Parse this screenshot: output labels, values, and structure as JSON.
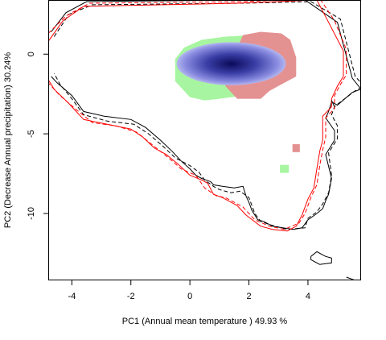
{
  "chart_data": {
    "type": "scatter",
    "title": "",
    "xlabel": "PC1 (Annual mean temperature ) 49.93 %",
    "ylabel": "PC2 (Decrease Annual precipitation) 30.24%",
    "xlim": [
      -4.8,
      5.8
    ],
    "ylim": [
      -14.2,
      3.4
    ],
    "x_ticks": [
      -4,
      -2,
      0,
      2,
      4
    ],
    "y_ticks": [
      0,
      -5,
      -10
    ],
    "grid": false,
    "legend": "none",
    "colors": {
      "black": "#000000",
      "red": "#ff0000",
      "green_fill": "#a7f5a0",
      "red_fill": "#e49191",
      "blue_dark": "#0a0a5a",
      "blue_light": "#b4b6ee"
    },
    "series": [
      {
        "style": "solid",
        "color": "black",
        "points": [
          [
            -4.7,
            1.4
          ],
          [
            -4.2,
            2.6
          ],
          [
            -3.5,
            3.3
          ],
          [
            1.7,
            3.4
          ],
          [
            3.9,
            3.4
          ],
          [
            5.0,
            2.0
          ],
          [
            5.5,
            -1.5
          ],
          [
            5.8,
            -2.2
          ],
          [
            5.5,
            -2.4
          ],
          [
            5.0,
            -3.2
          ],
          [
            4.8,
            -3.0
          ],
          [
            4.7,
            -3.6
          ],
          [
            4.6,
            -4.0
          ],
          [
            4.9,
            -4.8
          ],
          [
            4.9,
            -5.4
          ],
          [
            4.6,
            -6.3
          ],
          [
            4.8,
            -7.8
          ],
          [
            4.7,
            -8.8
          ],
          [
            4.6,
            -9.2
          ],
          [
            4.5,
            -9.7
          ],
          [
            4.3,
            -10.0
          ],
          [
            4.0,
            -10.4
          ],
          [
            3.8,
            -10.9
          ],
          [
            3.5,
            -11.0
          ],
          [
            2.8,
            -10.8
          ],
          [
            2.5,
            -10.5
          ],
          [
            2.3,
            -10.4
          ],
          [
            2.1,
            -9.8
          ],
          [
            2.0,
            -9.3
          ],
          [
            1.9,
            -8.9
          ],
          [
            1.8,
            -8.3
          ],
          [
            1.5,
            -8.4
          ],
          [
            1.1,
            -8.3
          ],
          [
            0.8,
            -8.2
          ],
          [
            0.7,
            -8.0
          ],
          [
            0.4,
            -7.8
          ],
          [
            0.2,
            -7.6
          ],
          [
            0.0,
            -7.2
          ],
          [
            -0.3,
            -6.7
          ],
          [
            -0.6,
            -6.1
          ],
          [
            -1.0,
            -5.4
          ],
          [
            -1.5,
            -4.6
          ],
          [
            -2.0,
            -4.1
          ],
          [
            -2.9,
            -3.9
          ],
          [
            -3.6,
            -3.6
          ],
          [
            -4.0,
            -2.6
          ],
          [
            -4.5,
            -1.8
          ],
          [
            -4.7,
            -1.4
          ]
        ]
      },
      {
        "style": "dashed",
        "color": "black",
        "points": [
          [
            -4.6,
            1.1
          ],
          [
            -4.1,
            2.5
          ],
          [
            -3.3,
            3.1
          ],
          [
            1.8,
            3.2
          ],
          [
            4.1,
            3.3
          ],
          [
            5.1,
            2.2
          ],
          [
            5.6,
            -1.4
          ],
          [
            5.9,
            -2.0
          ],
          [
            5.6,
            -2.3
          ],
          [
            5.1,
            -3.0
          ],
          [
            4.9,
            -3.3
          ],
          [
            4.8,
            -3.8
          ],
          [
            5.0,
            -4.5
          ],
          [
            5.0,
            -5.3
          ],
          [
            4.7,
            -6.2
          ],
          [
            4.8,
            -7.6
          ],
          [
            4.7,
            -8.7
          ],
          [
            4.5,
            -9.4
          ],
          [
            4.3,
            -9.9
          ],
          [
            4.0,
            -10.3
          ],
          [
            3.9,
            -10.9
          ],
          [
            3.3,
            -11.0
          ],
          [
            2.7,
            -10.7
          ],
          [
            2.4,
            -10.5
          ],
          [
            2.2,
            -10.0
          ],
          [
            2.1,
            -9.5
          ],
          [
            2.0,
            -9.0
          ],
          [
            1.7,
            -8.6
          ],
          [
            1.4,
            -8.7
          ],
          [
            1.0,
            -8.5
          ],
          [
            0.8,
            -8.3
          ],
          [
            0.5,
            -7.9
          ],
          [
            0.3,
            -7.4
          ],
          [
            0.0,
            -7.0
          ],
          [
            -0.5,
            -6.5
          ],
          [
            -0.9,
            -5.8
          ],
          [
            -1.4,
            -5.0
          ],
          [
            -1.9,
            -4.4
          ],
          [
            -2.8,
            -4.2
          ],
          [
            -3.6,
            -3.8
          ],
          [
            -4.0,
            -2.8
          ],
          [
            -4.4,
            -1.9
          ],
          [
            -4.6,
            -1.2
          ]
        ]
      },
      {
        "style": "solid",
        "color": "red",
        "points": [
          [
            -4.8,
            0.8
          ],
          [
            -4.3,
            2.1
          ],
          [
            -3.6,
            3.0
          ],
          [
            1.6,
            3.2
          ],
          [
            4.3,
            3.4
          ],
          [
            4.7,
            2.0
          ],
          [
            5.2,
            0.2
          ],
          [
            5.2,
            -1.4
          ],
          [
            5.0,
            -2.0
          ],
          [
            4.8,
            -2.8
          ],
          [
            4.8,
            -3.3
          ],
          [
            4.5,
            -3.9
          ],
          [
            4.5,
            -5.4
          ],
          [
            4.4,
            -6.1
          ],
          [
            4.3,
            -7.2
          ],
          [
            4.2,
            -8.4
          ],
          [
            4.0,
            -9.1
          ],
          [
            3.8,
            -10.1
          ],
          [
            3.6,
            -10.8
          ],
          [
            3.3,
            -11.1
          ],
          [
            2.8,
            -11.0
          ],
          [
            2.4,
            -10.8
          ],
          [
            1.9,
            -10.1
          ],
          [
            1.6,
            -9.5
          ],
          [
            1.1,
            -9.0
          ],
          [
            0.8,
            -8.8
          ],
          [
            0.6,
            -8.1
          ],
          [
            0.4,
            -7.9
          ],
          [
            0.0,
            -7.6
          ],
          [
            -0.4,
            -6.9
          ],
          [
            -0.8,
            -6.3
          ],
          [
            -1.2,
            -5.9
          ],
          [
            -1.6,
            -5.2
          ],
          [
            -2.0,
            -4.7
          ],
          [
            -2.8,
            -4.4
          ],
          [
            -3.6,
            -4.1
          ],
          [
            -4.1,
            -3.1
          ],
          [
            -4.6,
            -2.2
          ],
          [
            -4.8,
            -1.6
          ]
        ]
      },
      {
        "style": "dashed",
        "color": "red",
        "points": [
          [
            -4.8,
            1.3
          ],
          [
            -4.2,
            2.4
          ],
          [
            -3.4,
            3.2
          ],
          [
            1.8,
            3.3
          ],
          [
            4.4,
            3.5
          ],
          [
            4.9,
            2.1
          ],
          [
            5.3,
            0.3
          ],
          [
            5.3,
            -1.3
          ],
          [
            5.1,
            -1.9
          ],
          [
            4.9,
            -2.6
          ],
          [
            4.9,
            -3.4
          ],
          [
            4.6,
            -4.0
          ],
          [
            4.6,
            -5.2
          ],
          [
            4.5,
            -6.0
          ],
          [
            4.4,
            -7.0
          ],
          [
            4.3,
            -8.2
          ],
          [
            4.1,
            -9.0
          ],
          [
            3.9,
            -10.0
          ],
          [
            3.7,
            -10.6
          ],
          [
            3.2,
            -11.0
          ],
          [
            2.7,
            -10.8
          ],
          [
            2.2,
            -10.4
          ],
          [
            1.8,
            -9.6
          ],
          [
            1.5,
            -9.3
          ],
          [
            1.2,
            -9.0
          ],
          [
            0.9,
            -8.9
          ],
          [
            0.5,
            -8.4
          ],
          [
            0.2,
            -7.6
          ],
          [
            -0.3,
            -7.2
          ],
          [
            -0.6,
            -6.7
          ],
          [
            -1.0,
            -6.1
          ],
          [
            -1.4,
            -5.5
          ],
          [
            -1.8,
            -4.9
          ],
          [
            -2.5,
            -4.5
          ],
          [
            -3.3,
            -4.3
          ],
          [
            -3.9,
            -3.4
          ],
          [
            -4.4,
            -2.6
          ],
          [
            -4.8,
            -1.8
          ]
        ]
      },
      {
        "style": "solid",
        "color": "black",
        "points": [
          [
            4.1,
            -12.7
          ],
          [
            4.3,
            -12.4
          ],
          [
            4.6,
            -12.7
          ],
          [
            4.8,
            -12.8
          ],
          [
            4.8,
            -13.1
          ],
          [
            4.4,
            -13.2
          ],
          [
            4.1,
            -12.9
          ],
          [
            4.1,
            -12.7
          ]
        ]
      },
      {
        "style": "solid",
        "color": "black",
        "points": [
          [
            5.3,
            -14.0
          ],
          [
            5.6,
            -14.2
          ]
        ]
      },
      {
        "style": "solid",
        "color": "black",
        "points": [
          [
            4.8,
            -2.9
          ],
          [
            4.9,
            -3.3
          ]
        ]
      }
    ],
    "regions": [
      {
        "name": "niche-overlap-green",
        "color": "green_fill",
        "points": [
          [
            -0.5,
            -1.0
          ],
          [
            -0.5,
            -0.3
          ],
          [
            -0.2,
            0.4
          ],
          [
            0.4,
            0.9
          ],
          [
            1.2,
            1.1
          ],
          [
            2.1,
            1.2
          ],
          [
            2.6,
            1.1
          ],
          [
            2.8,
            0.6
          ],
          [
            2.7,
            0.0
          ],
          [
            2.6,
            -1.0
          ],
          [
            2.4,
            -2.0
          ],
          [
            1.8,
            -2.6
          ],
          [
            1.0,
            -2.8
          ],
          [
            0.5,
            -2.9
          ],
          [
            0.0,
            -2.7
          ],
          [
            -0.5,
            -1.7
          ]
        ]
      },
      {
        "name": "niche-overlap-red",
        "color": "red_fill",
        "points": [
          [
            1.8,
            1.2
          ],
          [
            2.4,
            1.4
          ],
          [
            3.1,
            1.3
          ],
          [
            3.4,
            0.9
          ],
          [
            3.6,
            -0.2
          ],
          [
            3.6,
            -1.4
          ],
          [
            3.1,
            -1.9
          ],
          [
            2.7,
            -2.3
          ],
          [
            2.4,
            -2.8
          ],
          [
            1.6,
            -2.8
          ],
          [
            1.2,
            -2.0
          ],
          [
            1.6,
            0.4
          ]
        ]
      },
      {
        "name": "niche-blue-core",
        "color": "blue_dark",
        "rx": 1.85,
        "ry": 1.35,
        "cx": 1.4,
        "cy": -0.6
      }
    ],
    "small_patches": [
      {
        "color": "red_fill",
        "x": 3.6,
        "y": -5.9,
        "w": 0.25,
        "h": 0.5
      },
      {
        "color": "green_fill",
        "x": 3.2,
        "y": -7.2,
        "w": 0.3,
        "h": 0.5
      }
    ]
  }
}
